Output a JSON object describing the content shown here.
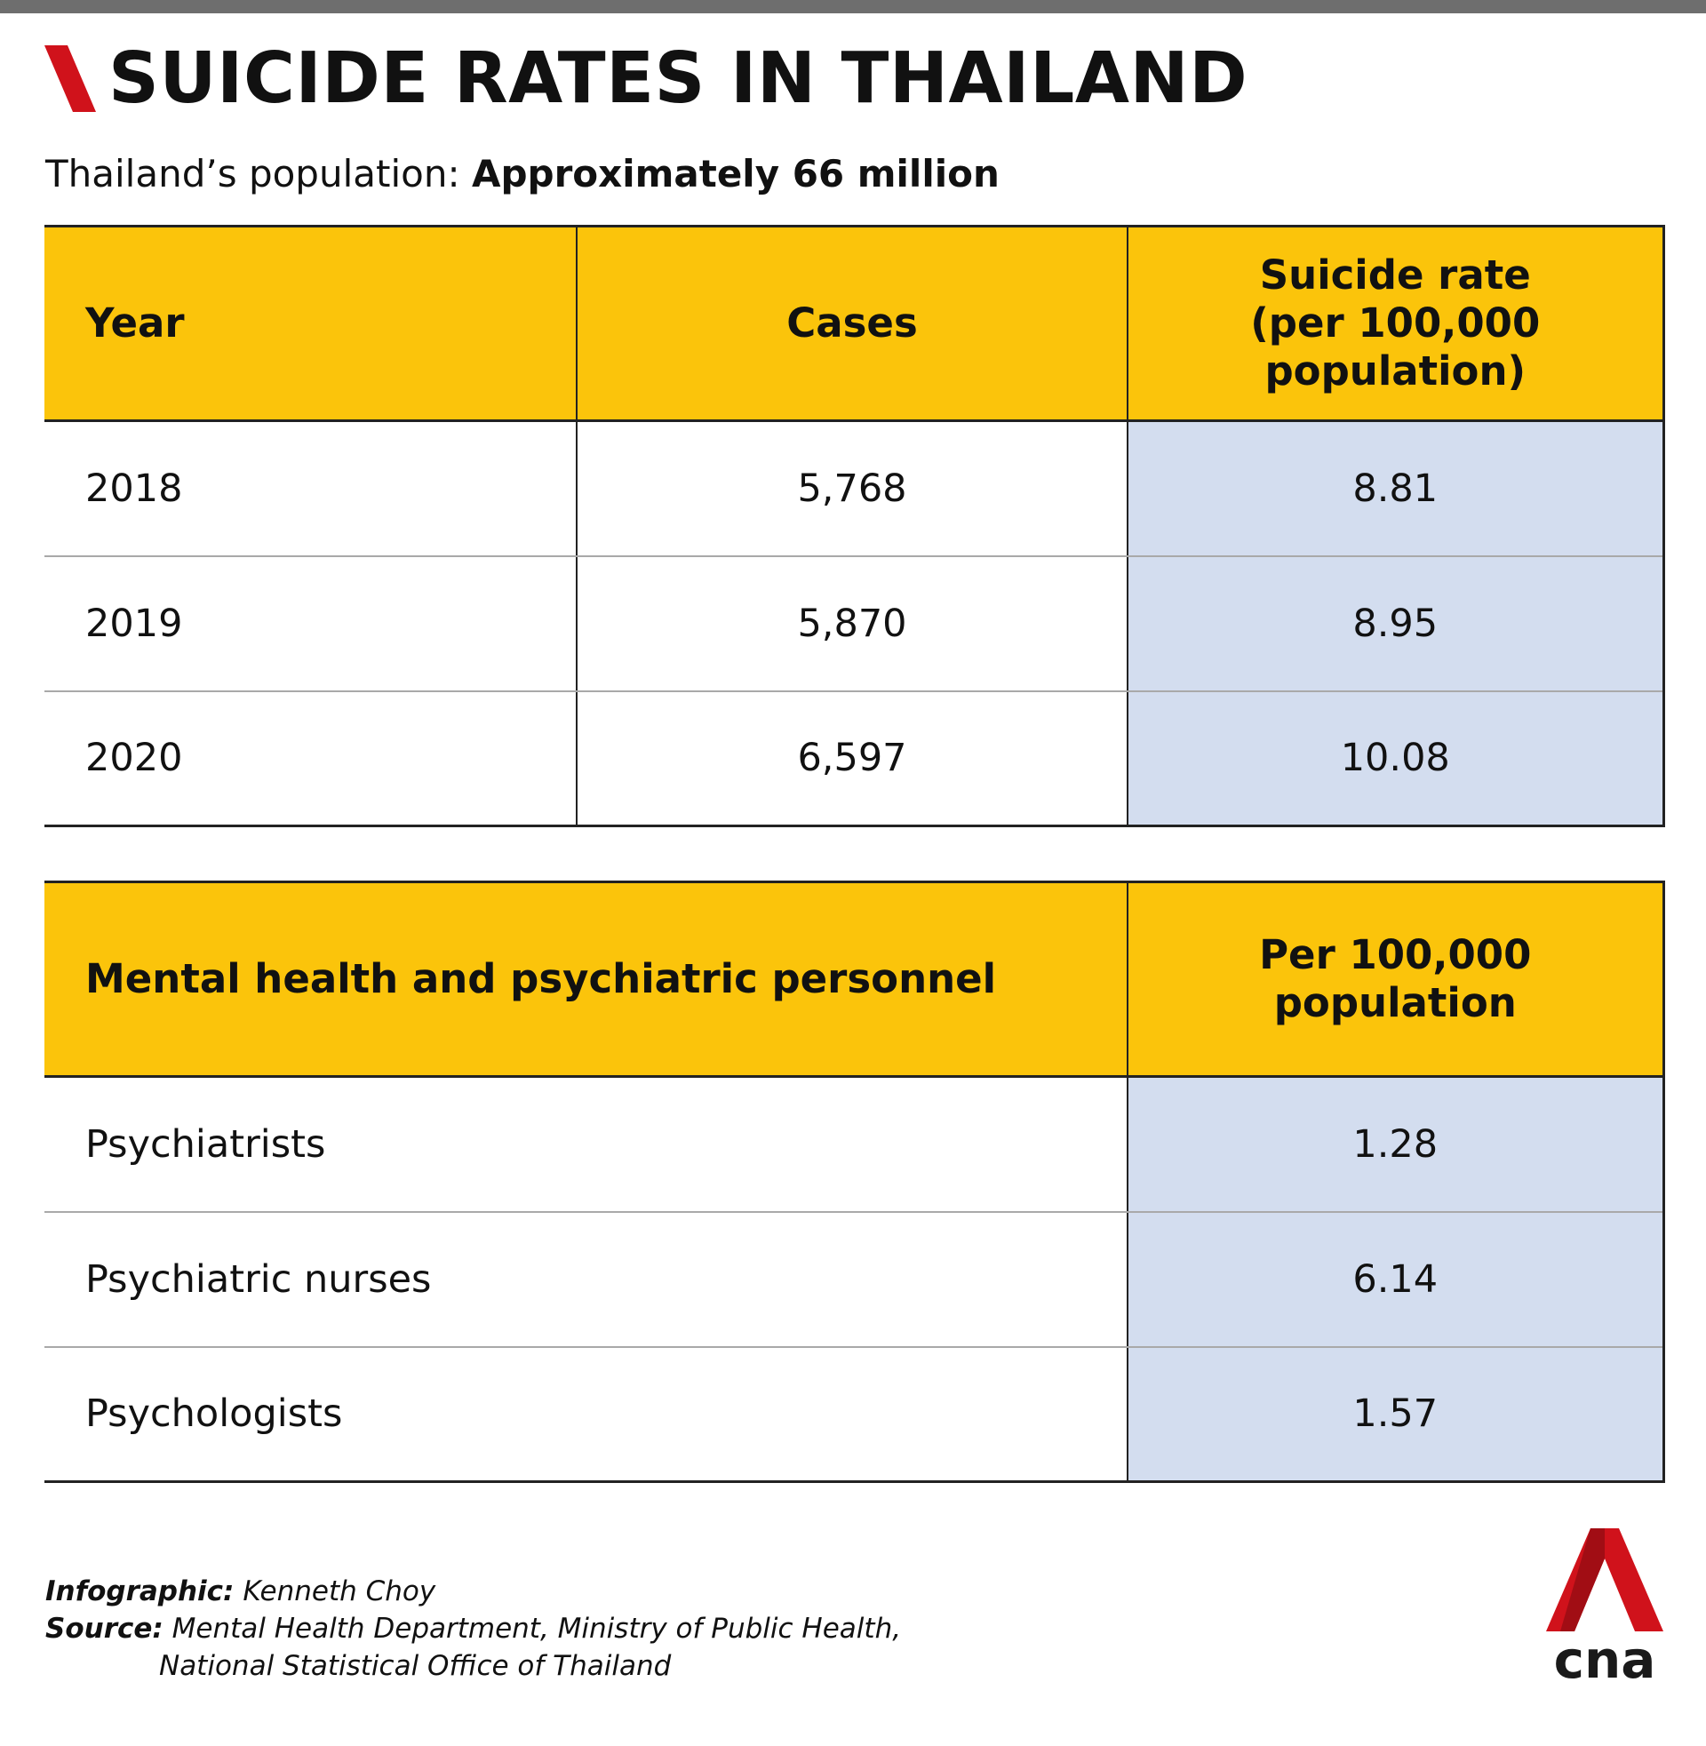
{
  "title": "SUICIDE RATES IN THAILAND",
  "subtitle": {
    "label": "Thailand’s population:",
    "value": "Approximately 66 million"
  },
  "table1": {
    "headers": {
      "year": "Year",
      "cases": "Cases",
      "rate_line1": "Suicide rate",
      "rate_line2": "(per 100,000",
      "rate_line3": "population)"
    },
    "rows": [
      {
        "year": "2018",
        "cases": "5,768",
        "rate": "8.81"
      },
      {
        "year": "2019",
        "cases": "5,870",
        "rate": "8.95"
      },
      {
        "year": "2020",
        "cases": "6,597",
        "rate": "10.08"
      }
    ]
  },
  "table2": {
    "headers": {
      "personnel": "Mental health and psychiatric personnel",
      "per_line1": "Per 100,000",
      "per_line2": "population"
    },
    "rows": [
      {
        "personnel": "Psychiatrists",
        "per": "1.28"
      },
      {
        "personnel": "Psychiatric nurses",
        "per": "6.14"
      },
      {
        "personnel": "Psychologists",
        "per": "1.57"
      }
    ]
  },
  "credits": {
    "infographic_label": "Infographic:",
    "infographic_value": "Kenneth Choy",
    "source_label": "Source:",
    "source_line1": "Mental Health Department, Ministry of Public Health,",
    "source_line2": "National Statistical Office of Thailand"
  },
  "logo": {
    "text": "cna"
  },
  "colors": {
    "header_fill": "#fbc40b",
    "shaded_column": "#d3ddef",
    "accent_red": "#d0121b",
    "top_bar": "#6e6e6e"
  },
  "icons": [
    "title-slash-icon",
    "cna-logo-icon"
  ],
  "chart_data": [
    {
      "type": "table",
      "columns": [
        "Year",
        "Cases",
        "Suicide rate (per 100,000 population)"
      ],
      "rows": [
        [
          "2018",
          5768,
          8.81
        ],
        [
          "2019",
          5870,
          8.95
        ],
        [
          "2020",
          6597,
          10.08
        ]
      ]
    },
    {
      "type": "table",
      "columns": [
        "Mental health and psychiatric personnel",
        "Per 100,000 population"
      ],
      "rows": [
        [
          "Psychiatrists",
          1.28
        ],
        [
          "Psychiatric nurses",
          6.14
        ],
        [
          "Psychologists",
          1.57
        ]
      ]
    }
  ]
}
